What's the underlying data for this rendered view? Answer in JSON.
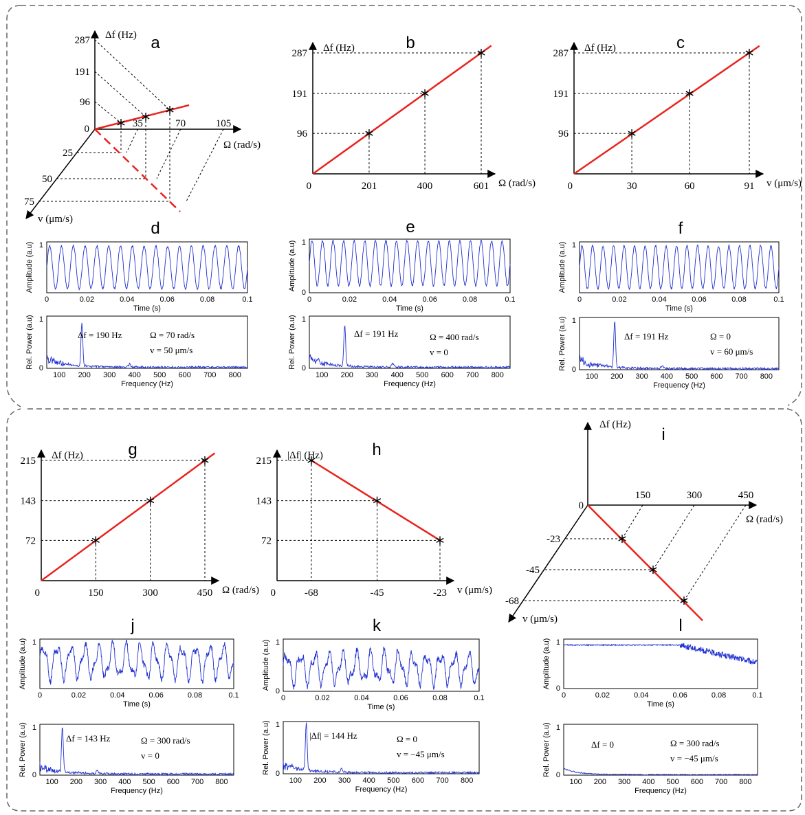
{
  "colors": {
    "fit_line": "#e8231d",
    "signal": "#1f2fd0",
    "guide": "#000000",
    "frame": "#666666"
  },
  "panels": [
    "a",
    "b",
    "c",
    "d",
    "e",
    "f",
    "g",
    "h",
    "i",
    "j",
    "k",
    "l"
  ],
  "chart_data": [
    {
      "id": "a",
      "type": "line",
      "xlabel": "Ω (rad/s)",
      "ylabel": "Δf (Hz)",
      "zlabel": "v (μm/s)",
      "omega_ticks": [
        "35",
        "70",
        "105"
      ],
      "v_ticks": [
        "25",
        "50",
        "75"
      ],
      "df_ticks": [
        "96",
        "191",
        "287"
      ],
      "origin": "0",
      "points": [
        {
          "omega": 35,
          "v": 25,
          "df": 96
        },
        {
          "omega": 70,
          "v": 50,
          "df": 191
        },
        {
          "omega": 105,
          "v": 75,
          "df": 287
        }
      ]
    },
    {
      "id": "b",
      "type": "line",
      "xlabel": "Ω (rad/s)",
      "ylabel": "Δf (Hz)",
      "origin": "0",
      "x": [
        201,
        400,
        601
      ],
      "y": [
        96,
        191,
        287
      ],
      "xticks": [
        "201",
        "400",
        "601"
      ],
      "yticks": [
        "96",
        "191",
        "287"
      ]
    },
    {
      "id": "c",
      "type": "line",
      "xlabel": "v (μm/s)",
      "ylabel": "Δf (Hz)",
      "origin": "0",
      "x": [
        30,
        60,
        91
      ],
      "y": [
        96,
        191,
        287
      ],
      "xticks": [
        "30",
        "60",
        "91"
      ],
      "yticks": [
        "96",
        "191",
        "287"
      ]
    },
    {
      "id": "g",
      "type": "line",
      "xlabel": "Ω (rad/s)",
      "ylabel": "Δf (Hz)",
      "origin": "0",
      "x": [
        150,
        300,
        450
      ],
      "y": [
        72,
        143,
        215
      ],
      "xticks": [
        "150",
        "300",
        "450"
      ],
      "yticks": [
        "72",
        "143",
        "215"
      ]
    },
    {
      "id": "h",
      "type": "line",
      "xlabel": "v (μm/s)",
      "ylabel": "|Δf| (Hz)",
      "origin": "0",
      "x": [
        -68,
        -45,
        -23
      ],
      "y": [
        215,
        143,
        72
      ],
      "xticks": [
        "-68",
        "-45",
        "-23"
      ],
      "yticks": [
        "72",
        "143",
        "215"
      ]
    },
    {
      "id": "i",
      "type": "line",
      "xlabel": "Ω (rad/s)",
      "ylabel": "Δf (Hz)",
      "zlabel": "v (μm/s)",
      "origin": "0",
      "omega_ticks": [
        "150",
        "300",
        "450"
      ],
      "v_ticks": [
        "-23",
        "-45",
        "-68"
      ],
      "points": [
        {
          "omega": 150,
          "v": -23,
          "df": 0
        },
        {
          "omega": 300,
          "v": -45,
          "df": 0
        },
        {
          "omega": 450,
          "v": -68,
          "df": 0
        }
      ]
    },
    {
      "id": "d",
      "type": "line",
      "time": {
        "ylabel": "Amplitude (a.u)",
        "xlabel": "Time (s)",
        "xlim": [
          0,
          0.1
        ],
        "ylim": [
          0,
          1
        ],
        "xticks": [
          "0",
          "0.02",
          "0.04",
          "0.06",
          "0.08",
          "0.1"
        ],
        "yticks": [
          "1"
        ],
        "cycles": 17,
        "pattern": "sine",
        "level": 0.5,
        "amp": 0.42
      },
      "spec": {
        "ylabel": "Rel. Power (a.u)",
        "xlabel": "Frequency (Hz)",
        "xlim": [
          50,
          850
        ],
        "ylim": [
          0,
          1
        ],
        "xticks": [
          "100",
          "200",
          "300",
          "400",
          "500",
          "600",
          "700",
          "800"
        ],
        "yticks": [
          "0",
          "1"
        ],
        "peak_hz": 190,
        "peak": 0.83
      },
      "annotations": [
        "Δf = 190 Hz",
        "Ω = 70 rad/s",
        "v = 50 μm/s"
      ]
    },
    {
      "id": "e",
      "type": "line",
      "time": {
        "ylabel": "Amplitude (a.u)",
        "xlabel": "Time (s)",
        "xlim": [
          0,
          0.1
        ],
        "ylim": [
          0,
          1
        ],
        "xticks": [
          "0",
          "0.02",
          "0.04",
          "0.06",
          "0.08",
          "0.1"
        ],
        "yticks": [
          "0",
          "1"
        ],
        "cycles": 19,
        "pattern": "sine",
        "level": 0.55,
        "amp": 0.42
      },
      "spec": {
        "ylabel": "Rel. Power (a.u)",
        "xlabel": "Frequency (Hz)",
        "xlim": [
          50,
          850
        ],
        "ylim": [
          0,
          1
        ],
        "xticks": [
          "100",
          "200",
          "300",
          "400",
          "500",
          "600",
          "700",
          "800"
        ],
        "yticks": [
          "0",
          "1"
        ],
        "peak_hz": 191,
        "peak": 0.8
      },
      "annotations": [
        "Δf = 191 Hz",
        "Ω = 400 rad/s",
        "v = 0"
      ]
    },
    {
      "id": "f",
      "type": "line",
      "time": {
        "ylabel": "Amplitude (a.u)",
        "xlabel": "Time (s)",
        "xlim": [
          0,
          0.1
        ],
        "ylim": [
          0,
          1
        ],
        "xticks": [
          "0",
          "0.02",
          "0.04",
          "0.06",
          "0.08",
          "0.1"
        ],
        "yticks": [
          "1"
        ],
        "cycles": 19,
        "pattern": "sine",
        "level": 0.5,
        "amp": 0.42
      },
      "spec": {
        "ylabel": "Rel. Power (a.u)",
        "xlabel": "Frequency (Hz)",
        "xlim": [
          50,
          850
        ],
        "ylim": [
          0,
          1
        ],
        "xticks": [
          "100",
          "200",
          "300",
          "400",
          "500",
          "600",
          "700",
          "800"
        ],
        "yticks": [
          "0",
          "1"
        ],
        "peak_hz": 191,
        "peak": 0.9
      },
      "annotations": [
        "Δf = 191 Hz",
        "Ω = 0",
        "v = 60 μm/s"
      ]
    },
    {
      "id": "j",
      "type": "line",
      "time": {
        "ylabel": "Amplitude (a.u)",
        "xlabel": "Time (s)",
        "xlim": [
          0,
          0.1
        ],
        "ylim": [
          0,
          1
        ],
        "xticks": [
          "0",
          "0.02",
          "0.04",
          "0.06",
          "0.08",
          "0.1"
        ],
        "yticks": [
          "1"
        ],
        "cycles": 14,
        "pattern": "complex",
        "level": 0.55,
        "amp": 0.3
      },
      "spec": {
        "ylabel": "Rel. Power (a.u)",
        "xlabel": "Frequency (Hz)",
        "xlim": [
          50,
          850
        ],
        "ylim": [
          0,
          1
        ],
        "xticks": [
          "100",
          "200",
          "300",
          "400",
          "500",
          "600",
          "700",
          "800"
        ],
        "yticks": [
          "0",
          "1"
        ],
        "peak_hz": 143,
        "peak": 0.9
      },
      "annotations": [
        "Δf = 143 Hz",
        "Ω = 300 rad/s",
        "v = 0"
      ]
    },
    {
      "id": "k",
      "type": "line",
      "time": {
        "ylabel": "Amplitude (a.u)",
        "xlabel": "Time (s)",
        "xlim": [
          0,
          0.1
        ],
        "ylim": [
          0,
          1
        ],
        "xticks": [
          "0",
          "0.02",
          "0.04",
          "0.06",
          "0.08",
          "0.1"
        ],
        "yticks": [
          "0",
          "1"
        ],
        "cycles": 14,
        "pattern": "complex",
        "level": 0.45,
        "amp": 0.25
      },
      "spec": {
        "ylabel": "Rel. Power (a.u)",
        "xlabel": "Frequency (Hz)",
        "xlim": [
          50,
          850
        ],
        "ylim": [
          0,
          1
        ],
        "xticks": [
          "100",
          "200",
          "300",
          "400",
          "500",
          "600",
          "700",
          "800"
        ],
        "yticks": [
          "0",
          "1"
        ],
        "peak_hz": 144,
        "peak": 0.95
      },
      "annotations": [
        "|Δf| = 144 Hz",
        "Ω = 0",
        "v = −45 μm/s"
      ]
    },
    {
      "id": "l",
      "type": "line",
      "time": {
        "ylabel": "Amplitude (a.u)",
        "xlabel": "Time (s)",
        "xlim": [
          0,
          0.1
        ],
        "ylim": [
          0,
          1
        ],
        "xticks": [
          "0",
          "0.02",
          "0.04",
          "0.06",
          "0.08",
          "0.1"
        ],
        "yticks": [
          "0",
          "1"
        ],
        "cycles": 0,
        "pattern": "flat",
        "level": 0.88,
        "amp": 0.0
      },
      "spec": {
        "ylabel": "Rel. Power (a.u)",
        "xlabel": "Frequency (Hz)",
        "xlim": [
          50,
          850
        ],
        "ylim": [
          0,
          1
        ],
        "xticks": [
          "100",
          "200",
          "300",
          "400",
          "500",
          "600",
          "700",
          "800"
        ],
        "yticks": [
          "0",
          "1"
        ],
        "peak_hz": 0,
        "peak": 0
      },
      "annotations": [
        "Δf = 0",
        "Ω = 300 rad/s",
        "v = −45 μm/s"
      ]
    }
  ]
}
